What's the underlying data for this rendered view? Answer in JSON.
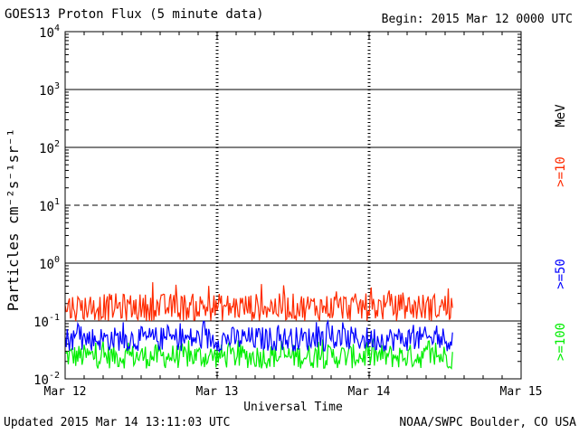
{
  "header": {
    "title": "GOES13 Proton Flux (5 minute data)",
    "begin": "Begin: 2015 Mar 12 0000 UTC"
  },
  "footer": {
    "updated": "Updated 2015 Mar 14 13:11:03 UTC",
    "source": "NOAA/SWPC Boulder, CO USA"
  },
  "chart_data": {
    "type": "line",
    "title": "GOES13 Proton Flux (5 minute data)",
    "xlabel": "Universal Time",
    "ylabel": "Particles cm⁻²s⁻¹sr⁻¹",
    "y_scale": "log",
    "ylim": [
      0.01,
      10000
    ],
    "y_ticks": [
      {
        "base": "10",
        "exp": "-2",
        "value": 0.01
      },
      {
        "base": "10",
        "exp": "-1",
        "value": 0.1
      },
      {
        "base": "10",
        "exp": "0",
        "value": 1
      },
      {
        "base": "10",
        "exp": "1",
        "value": 10
      },
      {
        "base": "10",
        "exp": "2",
        "value": 100
      },
      {
        "base": "10",
        "exp": "3",
        "value": 1000
      },
      {
        "base": "10",
        "exp": "4",
        "value": 10000
      }
    ],
    "x_range_days": [
      "2015-03-12 00:00",
      "2015-03-15 00:00"
    ],
    "x_ticks": [
      "Mar 12",
      "Mar 13",
      "Mar 14",
      "Mar 15"
    ],
    "data_end": "2015-03-14 13:10",
    "dashed_gridline_value": 10,
    "unit_label": "MeV",
    "series": [
      {
        "name": ">=10",
        "color": "#ff2a00",
        "typical_min": 0.1,
        "typical_max": 0.3,
        "peak": 0.5
      },
      {
        "name": ">=50",
        "color": "#0000ff",
        "typical_min": 0.03,
        "typical_max": 0.08,
        "peak": 0.1
      },
      {
        "name": ">=100",
        "color": "#00ee00",
        "typical_min": 0.015,
        "typical_max": 0.04,
        "peak": 0.05
      }
    ]
  }
}
